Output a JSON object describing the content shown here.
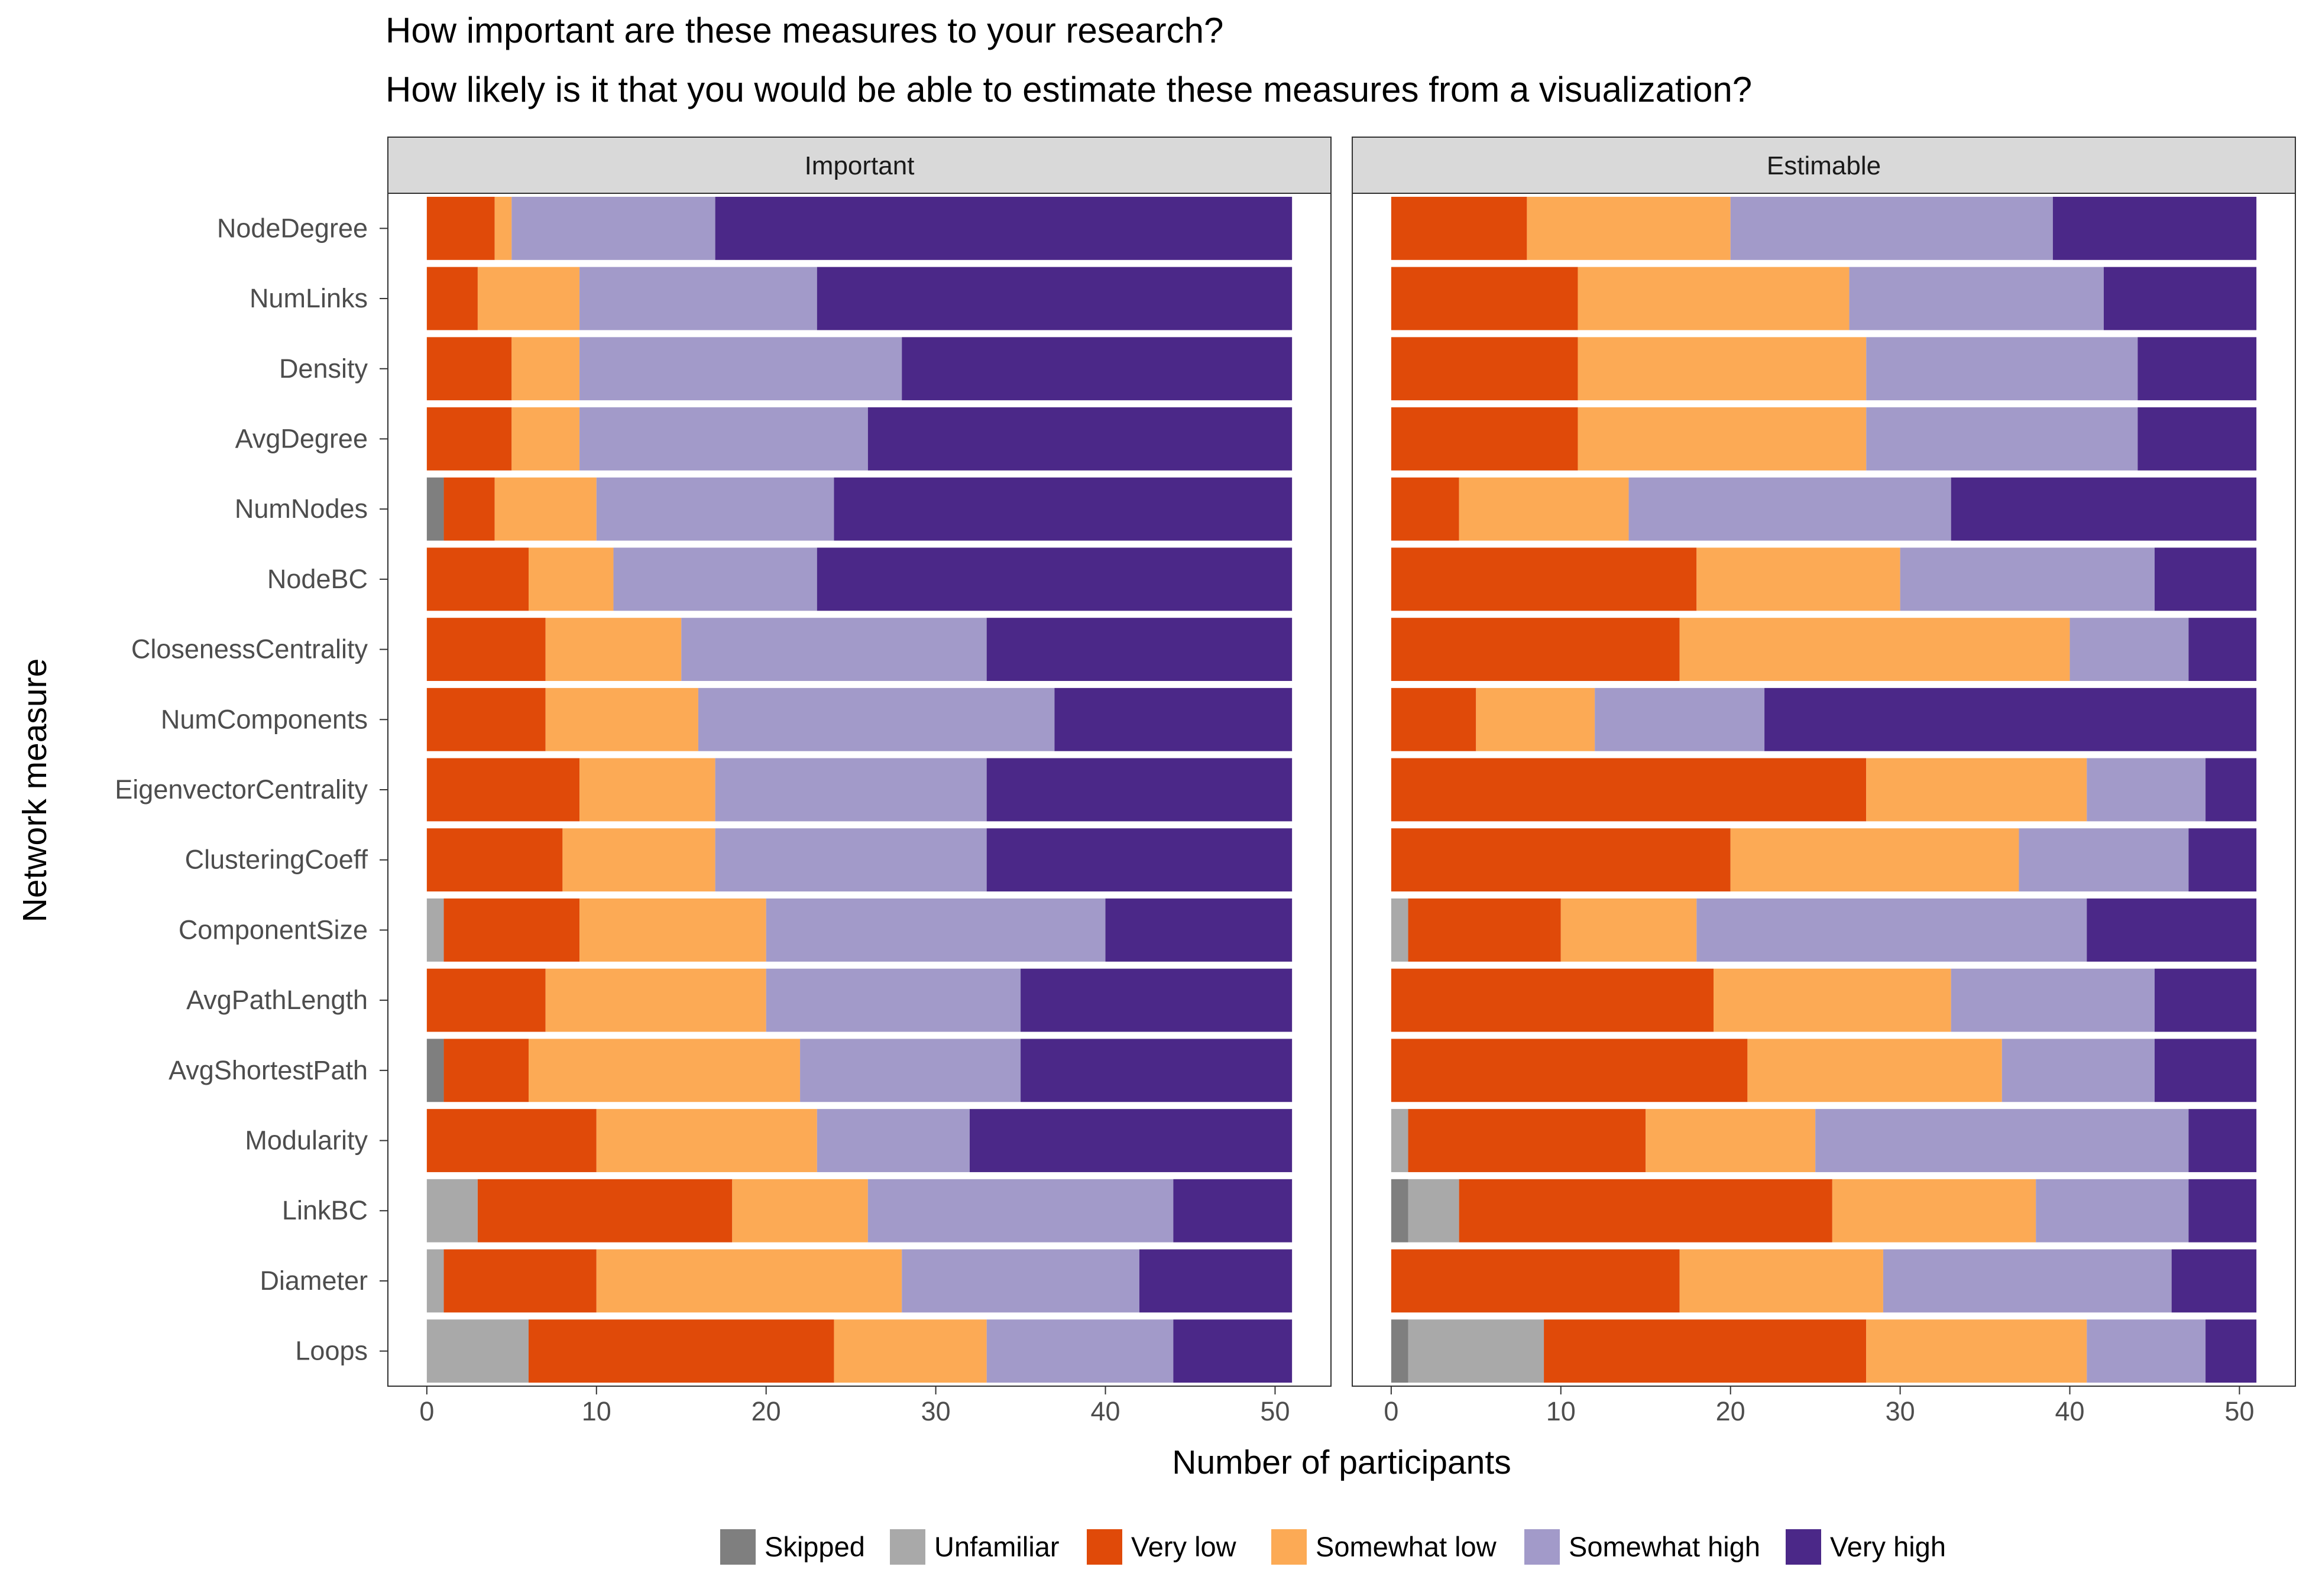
{
  "chart_data": {
    "type": "bar",
    "orientation": "horizontal",
    "stacked": true,
    "title": [
      "How important are these measures to your research?",
      "How likely is it that you would be able to estimate these measures from a visualization?"
    ],
    "xlabel": "Number of participants",
    "ylabel": "Network measure",
    "xlim": [
      0,
      51
    ],
    "xticks": [
      0,
      10,
      20,
      30,
      40,
      50
    ],
    "legend_position": "bottom",
    "categories": [
      "NodeDegree",
      "NumLinks",
      "Density",
      "AvgDegree",
      "NumNodes",
      "NodeBC",
      "ClosenessCentrality",
      "NumComponents",
      "EigenvectorCentrality",
      "ClusteringCoeff",
      "ComponentSize",
      "AvgPathLength",
      "AvgShortestPath",
      "Modularity",
      "LinkBC",
      "Diameter",
      "Loops"
    ],
    "legend": [
      {
        "name": "Skipped",
        "color": "#7f7f7f"
      },
      {
        "name": "Unfamiliar",
        "color": "#a9a9a9"
      },
      {
        "name": "Very low",
        "color": "#e04a09"
      },
      {
        "name": "Somewhat low",
        "color": "#fcaa55"
      },
      {
        "name": "Somewhat high",
        "color": "#a29ac9"
      },
      {
        "name": "Very high",
        "color": "#4b2888"
      }
    ],
    "panels": [
      {
        "label": "Important",
        "series": [
          {
            "name": "Skipped",
            "values": [
              0,
              0,
              0,
              0,
              1,
              0,
              0,
              0,
              0,
              0,
              0,
              0,
              1,
              0,
              0,
              0,
              0
            ]
          },
          {
            "name": "Unfamiliar",
            "values": [
              0,
              0,
              0,
              0,
              0,
              0,
              0,
              0,
              0,
              0,
              1,
              0,
              0,
              0,
              3,
              1,
              6
            ]
          },
          {
            "name": "Very low",
            "values": [
              4,
              3,
              5,
              5,
              3,
              6,
              7,
              7,
              9,
              8,
              8,
              7,
              5,
              10,
              15,
              9,
              18
            ]
          },
          {
            "name": "Somewhat low",
            "values": [
              1,
              6,
              4,
              4,
              6,
              5,
              8,
              9,
              8,
              9,
              11,
              13,
              16,
              13,
              8,
              18,
              9
            ]
          },
          {
            "name": "Somewhat high",
            "values": [
              12,
              14,
              19,
              17,
              14,
              12,
              18,
              21,
              16,
              16,
              20,
              15,
              13,
              9,
              18,
              14,
              11
            ]
          },
          {
            "name": "Very high",
            "values": [
              34,
              28,
              23,
              25,
              27,
              28,
              18,
              14,
              18,
              18,
              11,
              16,
              16,
              19,
              7,
              9,
              7
            ]
          }
        ]
      },
      {
        "label": "Estimable",
        "series": [
          {
            "name": "Skipped",
            "values": [
              0,
              0,
              0,
              0,
              0,
              0,
              0,
              0,
              0,
              0,
              0,
              0,
              0,
              0,
              1,
              0,
              1
            ]
          },
          {
            "name": "Unfamiliar",
            "values": [
              0,
              0,
              0,
              0,
              0,
              0,
              0,
              0,
              0,
              0,
              1,
              0,
              0,
              1,
              3,
              0,
              8
            ]
          },
          {
            "name": "Very low",
            "values": [
              8,
              11,
              11,
              11,
              4,
              18,
              17,
              5,
              28,
              20,
              9,
              19,
              21,
              14,
              22,
              17,
              19
            ]
          },
          {
            "name": "Somewhat low",
            "values": [
              12,
              16,
              17,
              17,
              10,
              12,
              23,
              7,
              13,
              17,
              8,
              14,
              15,
              10,
              12,
              12,
              13
            ]
          },
          {
            "name": "Somewhat high",
            "values": [
              19,
              15,
              16,
              16,
              19,
              15,
              7,
              10,
              7,
              10,
              23,
              12,
              9,
              22,
              9,
              17,
              7
            ]
          },
          {
            "name": "Very high",
            "values": [
              12,
              9,
              7,
              7,
              18,
              6,
              4,
              29,
              3,
              4,
              10,
              6,
              6,
              4,
              4,
              5,
              3
            ]
          }
        ]
      }
    ]
  }
}
